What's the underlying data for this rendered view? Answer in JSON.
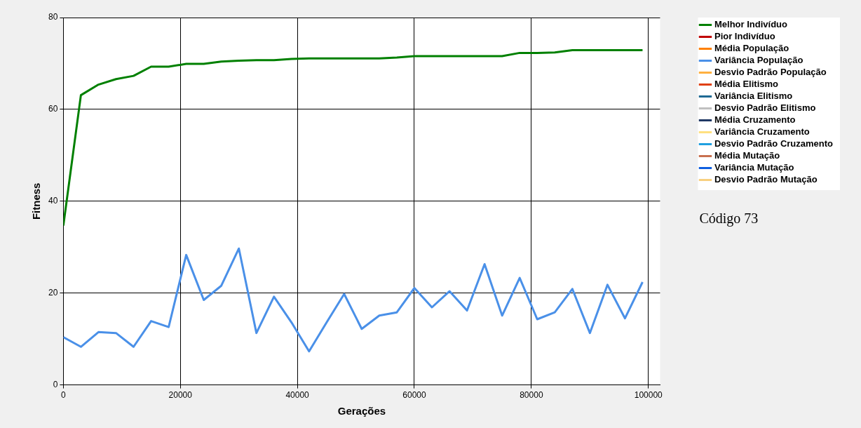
{
  "chart_data": {
    "type": "line",
    "xlabel": "Gerações",
    "ylabel": "Fitness",
    "annotations": [
      "Código 73"
    ],
    "x": [
      0,
      3000,
      6000,
      9000,
      12000,
      15000,
      18000,
      21000,
      24000,
      27000,
      30000,
      33000,
      36000,
      39000,
      42000,
      45000,
      48000,
      51000,
      54000,
      57000,
      60000,
      63000,
      66000,
      69000,
      72000,
      75000,
      78000,
      81000,
      84000,
      87000,
      90000,
      93000,
      96000,
      99000
    ],
    "xlim": [
      0,
      102000
    ],
    "xticks": [
      0,
      20000,
      40000,
      60000,
      80000,
      100000
    ],
    "ylim": [
      0,
      80
    ],
    "yticks": [
      0,
      20,
      40,
      60,
      80
    ],
    "grid": true,
    "legend": "top right",
    "marker": "none",
    "line_style": "solid",
    "series": [
      {
        "name": "Melhor Indivíduo",
        "color": "#008000",
        "values": [
          34.7,
          63.1,
          65.4,
          66.6,
          67.3,
          69.3,
          69.3,
          69.9,
          69.9,
          70.4,
          70.6,
          70.7,
          70.7,
          71.0,
          71.1,
          71.1,
          71.1,
          71.1,
          71.1,
          71.3,
          71.6,
          71.6,
          71.6,
          71.6,
          71.6,
          71.6,
          72.3,
          72.3,
          72.4,
          72.9,
          72.9,
          72.9,
          72.9,
          72.9
        ]
      },
      {
        "name": "Pior Indivíduo",
        "color": "#c00000",
        "values": [
          null,
          null,
          null,
          null,
          null,
          null,
          null,
          null,
          null,
          null,
          null,
          null,
          null,
          null,
          null,
          null,
          null,
          null,
          null,
          null,
          null,
          null,
          null,
          null,
          null,
          null,
          null,
          null,
          null,
          null,
          null,
          null,
          null,
          null
        ]
      },
      {
        "name": "Média População",
        "color": "#ff8000",
        "values": [
          null,
          null,
          null,
          null,
          null,
          null,
          null,
          null,
          null,
          null,
          null,
          null,
          null,
          null,
          null,
          null,
          null,
          null,
          null,
          null,
          null,
          null,
          null,
          null,
          null,
          null,
          null,
          null,
          null,
          null,
          null,
          null,
          null,
          null
        ]
      },
      {
        "name": "Variância População",
        "color": "#4a90e8",
        "values": [
          10.4,
          8.3,
          11.5,
          11.3,
          8.3,
          13.9,
          12.6,
          28.3,
          18.5,
          21.6,
          29.7,
          11.3,
          19.2,
          13.6,
          7.3,
          13.6,
          19.8,
          12.2,
          15.1,
          15.8,
          21.1,
          16.9,
          20.4,
          16.2,
          26.3,
          15.1,
          23.3,
          14.3,
          15.8,
          20.9,
          11.3,
          21.8,
          14.5,
          22.4
        ]
      },
      {
        "name": "Desvio Padrão População",
        "color": "#ffb040",
        "values": [
          null,
          null,
          null,
          null,
          null,
          null,
          null,
          null,
          null,
          null,
          null,
          null,
          null,
          null,
          null,
          null,
          null,
          null,
          null,
          null,
          null,
          null,
          null,
          null,
          null,
          null,
          null,
          null,
          null,
          null,
          null,
          null,
          null,
          null
        ]
      },
      {
        "name": "Média Elitismo",
        "color": "#e04010",
        "values": [
          null,
          null,
          null,
          null,
          null,
          null,
          null,
          null,
          null,
          null,
          null,
          null,
          null,
          null,
          null,
          null,
          null,
          null,
          null,
          null,
          null,
          null,
          null,
          null,
          null,
          null,
          null,
          null,
          null,
          null,
          null,
          null,
          null,
          null
        ]
      },
      {
        "name": "Variância Elitismo",
        "color": "#1f6a94",
        "values": [
          null,
          null,
          null,
          null,
          null,
          null,
          null,
          null,
          null,
          null,
          null,
          null,
          null,
          null,
          null,
          null,
          null,
          null,
          null,
          null,
          null,
          null,
          null,
          null,
          null,
          null,
          null,
          null,
          null,
          null,
          null,
          null,
          null,
          null
        ]
      },
      {
        "name": "Desvio Padrão Elitismo",
        "color": "#c0c0c0",
        "values": [
          null,
          null,
          null,
          null,
          null,
          null,
          null,
          null,
          null,
          null,
          null,
          null,
          null,
          null,
          null,
          null,
          null,
          null,
          null,
          null,
          null,
          null,
          null,
          null,
          null,
          null,
          null,
          null,
          null,
          null,
          null,
          null,
          null,
          null
        ]
      },
      {
        "name": "Média Cruzamento",
        "color": "#1f3864",
        "values": [
          null,
          null,
          null,
          null,
          null,
          null,
          null,
          null,
          null,
          null,
          null,
          null,
          null,
          null,
          null,
          null,
          null,
          null,
          null,
          null,
          null,
          null,
          null,
          null,
          null,
          null,
          null,
          null,
          null,
          null,
          null,
          null,
          null,
          null
        ]
      },
      {
        "name": "Variância Cruzamento",
        "color": "#ffe080",
        "values": [
          null,
          null,
          null,
          null,
          null,
          null,
          null,
          null,
          null,
          null,
          null,
          null,
          null,
          null,
          null,
          null,
          null,
          null,
          null,
          null,
          null,
          null,
          null,
          null,
          null,
          null,
          null,
          null,
          null,
          null,
          null,
          null,
          null,
          null
        ]
      },
      {
        "name": "Desvio Padrão Cruzamento",
        "color": "#20a0e0",
        "values": [
          null,
          null,
          null,
          null,
          null,
          null,
          null,
          null,
          null,
          null,
          null,
          null,
          null,
          null,
          null,
          null,
          null,
          null,
          null,
          null,
          null,
          null,
          null,
          null,
          null,
          null,
          null,
          null,
          null,
          null,
          null,
          null,
          null,
          null
        ]
      },
      {
        "name": "Média Mutação",
        "color": "#c87050",
        "values": [
          null,
          null,
          null,
          null,
          null,
          null,
          null,
          null,
          null,
          null,
          null,
          null,
          null,
          null,
          null,
          null,
          null,
          null,
          null,
          null,
          null,
          null,
          null,
          null,
          null,
          null,
          null,
          null,
          null,
          null,
          null,
          null,
          null,
          null
        ]
      },
      {
        "name": "Variância Mutação",
        "color": "#1060e0",
        "values": [
          null,
          null,
          null,
          null,
          null,
          null,
          null,
          null,
          null,
          null,
          null,
          null,
          null,
          null,
          null,
          null,
          null,
          null,
          null,
          null,
          null,
          null,
          null,
          null,
          null,
          null,
          null,
          null,
          null,
          null,
          null,
          null,
          null,
          null
        ]
      },
      {
        "name": "Desvio Padrão Mutação",
        "color": "#f8d080",
        "values": [
          null,
          null,
          null,
          null,
          null,
          null,
          null,
          null,
          null,
          null,
          null,
          null,
          null,
          null,
          null,
          null,
          null,
          null,
          null,
          null,
          null,
          null,
          null,
          null,
          null,
          null,
          null,
          null,
          null,
          null,
          null,
          null,
          null,
          null
        ]
      }
    ]
  }
}
